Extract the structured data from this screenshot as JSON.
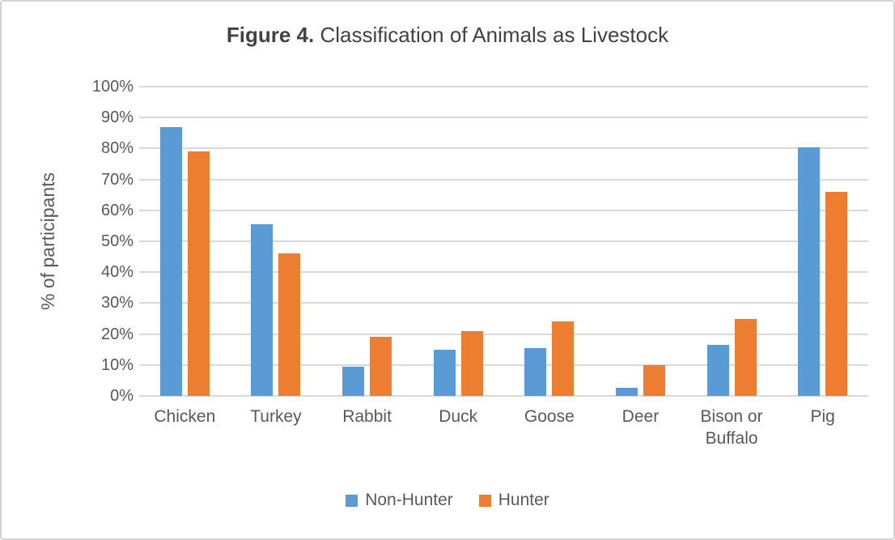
{
  "figure": {
    "title_bold": "Figure 4.",
    "title_rest": " Classification of Animals as Livestock"
  },
  "chart_data": {
    "type": "bar",
    "title": "Figure 4. Classification of Animals as Livestock",
    "categories": [
      "Chicken",
      "Turkey",
      "Rabbit",
      "Duck",
      "Goose",
      "Deer",
      "Bison or Buffalo",
      "Pig"
    ],
    "series": [
      {
        "name": "Non-Hunter",
        "color": "#5B9BD5",
        "values": [
          87,
          55.5,
          9.5,
          15,
          15.5,
          2.5,
          16.5,
          80.5
        ]
      },
      {
        "name": "Hunter",
        "color": "#ED7D31",
        "values": [
          79,
          46,
          19,
          21,
          24,
          10,
          25,
          66
        ]
      }
    ],
    "xlabel": "",
    "ylabel": "% of participants",
    "ylim": [
      0,
      100
    ],
    "ytick_step": 10,
    "ytick_format": "percent",
    "grid": true,
    "gridline_color": "#D9D9D9",
    "legend_position": "bottom",
    "legend_entries": [
      "Non-Hunter",
      "Hunter"
    ]
  }
}
